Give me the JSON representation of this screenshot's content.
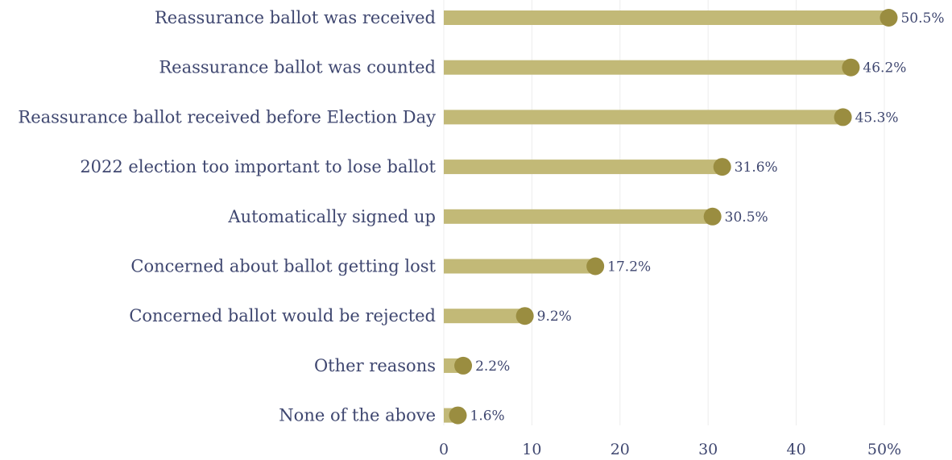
{
  "colors": {
    "bar": "#c2b977",
    "dot": "#9a8d40",
    "text": "#3f4770",
    "grid": "#ececec"
  },
  "chart_data": {
    "type": "bar",
    "orientation": "horizontal",
    "title": "",
    "xlabel": "",
    "ylabel": "",
    "grid": true,
    "xlim": [
      0,
      52
    ],
    "x_ticks": [
      0,
      10,
      20,
      30,
      40,
      50
    ],
    "x_tick_labels": [
      "0",
      "10",
      "20",
      "30",
      "40",
      "50%"
    ],
    "categories": [
      "Reassurance ballot was received",
      "Reassurance ballot was counted",
      "Reassurance ballot received before Election Day",
      "2022 election too important to lose ballot",
      "Automatically signed up",
      "Concerned about ballot getting lost",
      "Concerned ballot would be rejected",
      "Other reasons",
      "None of the above"
    ],
    "values": [
      50.5,
      46.2,
      45.3,
      31.6,
      30.5,
      17.2,
      9.2,
      2.2,
      1.6
    ],
    "value_labels": [
      "50.5%",
      "46.2%",
      "45.3%",
      "31.6%",
      "30.5%",
      "17.2%",
      "9.2%",
      "2.2%",
      "1.6%"
    ]
  }
}
